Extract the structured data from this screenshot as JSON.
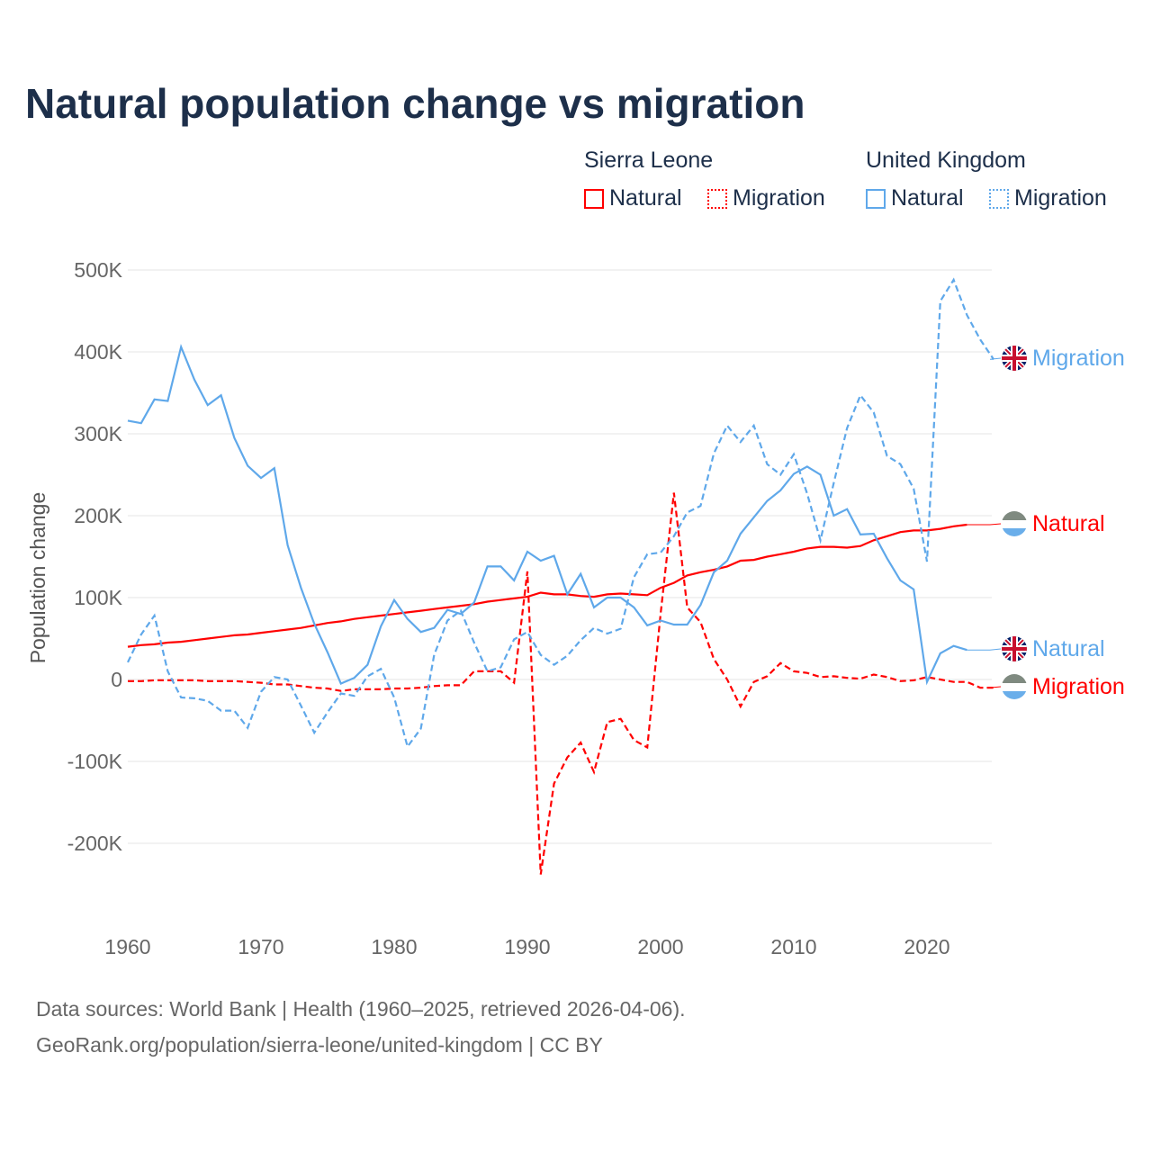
{
  "title": "Natural population change vs migration",
  "legend": {
    "groups": [
      {
        "name": "Sierra Leone",
        "color": "#ff0000",
        "items": [
          "Natural",
          "Migration"
        ]
      },
      {
        "name": "United Kingdom",
        "color": "#5fa8ea",
        "items": [
          "Natural",
          "Migration"
        ]
      }
    ]
  },
  "footer": {
    "line1": "Data sources: World Bank | Health (1960–2025, retrieved 2026-04-06).",
    "line2": "GeoRank.org/population/sierra-leone/united-kingdom | CC BY"
  },
  "chart_data": {
    "type": "line",
    "title": "Natural population change vs migration",
    "xlabel": "",
    "ylabel": "Population change",
    "xlim": [
      1960,
      2025
    ],
    "ylim": [
      -250000,
      500000
    ],
    "x_ticks": [
      1960,
      1970,
      1980,
      1990,
      2000,
      2010,
      2020
    ],
    "y_ticks": [
      {
        "value": 500000,
        "label": "500K"
      },
      {
        "value": 400000,
        "label": "400K"
      },
      {
        "value": 300000,
        "label": "300K"
      },
      {
        "value": 200000,
        "label": "200K"
      },
      {
        "value": 100000,
        "label": "100K"
      },
      {
        "value": 0,
        "label": "0"
      },
      {
        "value": -100000,
        "label": "-100K"
      },
      {
        "value": -200000,
        "label": "-200K"
      }
    ],
    "grid": true,
    "legend_position": "top-right",
    "series": [
      {
        "name": "Natural",
        "country": "Sierra Leone",
        "color": "#ff0000",
        "dash": false,
        "start": 1960,
        "end_label": "Natural",
        "values_k": [
          40,
          42,
          43,
          45,
          46,
          48,
          50,
          52,
          54,
          55,
          57,
          59,
          61,
          63,
          66,
          69,
          71,
          74,
          76,
          78,
          80,
          82,
          84,
          86,
          88,
          90,
          92,
          95,
          97,
          99,
          101,
          106,
          104,
          104,
          102,
          101,
          104,
          105,
          104,
          103,
          112,
          118,
          127,
          131,
          134,
          138,
          145,
          146,
          150,
          153,
          156,
          160,
          162,
          162,
          161,
          163,
          170,
          175,
          180,
          182,
          182,
          184,
          187,
          189
        ]
      },
      {
        "name": "Migration",
        "country": "Sierra Leone",
        "color": "#ff0000",
        "dash": true,
        "start": 1960,
        "end_label": "Migration",
        "values_k": [
          -2,
          -2,
          -1,
          -1,
          -1,
          -1,
          -2,
          -2,
          -2,
          -3,
          -4,
          -6,
          -6,
          -8,
          -10,
          -11,
          -14,
          -12,
          -12,
          -12,
          -11,
          -11,
          -10,
          -8,
          -7,
          -7,
          10,
          10,
          10,
          -4,
          132,
          -238,
          -127,
          -95,
          -77,
          -113,
          -52,
          -48,
          -74,
          -83,
          80,
          228,
          88,
          70,
          25,
          0,
          -33,
          -3,
          4,
          20,
          10,
          8,
          3,
          4,
          2,
          1,
          6,
          3,
          -2,
          -1,
          3,
          0,
          -3,
          -3,
          -10,
          -10
        ]
      },
      {
        "name": "Natural",
        "country": "United Kingdom",
        "color": "#5fa8ea",
        "dash": false,
        "start": 1960,
        "end_label": "Natural",
        "values_k": [
          316,
          313,
          342,
          340,
          406,
          366,
          335,
          347,
          295,
          261,
          246,
          258,
          164,
          112,
          68,
          33,
          -5,
          2,
          18,
          65,
          97,
          74,
          58,
          63,
          85,
          80,
          94,
          138,
          138,
          121,
          156,
          145,
          151,
          104,
          129,
          88,
          100,
          100,
          88,
          66,
          72,
          67,
          67,
          91,
          131,
          145,
          178,
          198,
          218,
          231,
          251,
          260,
          250,
          200,
          208,
          177,
          178,
          148,
          121,
          110,
          -3,
          32,
          41,
          36
        ]
      },
      {
        "name": "Migration",
        "country": "United Kingdom",
        "color": "#5fa8ea",
        "dash": true,
        "start": 1960,
        "end_label": "Migration",
        "values_k": [
          21,
          55,
          78,
          10,
          -22,
          -23,
          -26,
          -38,
          -38,
          -59,
          -15,
          3,
          0,
          -32,
          -65,
          -40,
          -17,
          -20,
          4,
          13,
          -22,
          -82,
          -60,
          30,
          72,
          84,
          45,
          10,
          15,
          49,
          58,
          30,
          18,
          29,
          48,
          63,
          56,
          62,
          125,
          153,
          155,
          175,
          204,
          212,
          276,
          310,
          290,
          310,
          263,
          250,
          275,
          227,
          170,
          240,
          307,
          347,
          326,
          273,
          263,
          233,
          144,
          462,
          488,
          445,
          415,
          391
        ]
      }
    ]
  }
}
